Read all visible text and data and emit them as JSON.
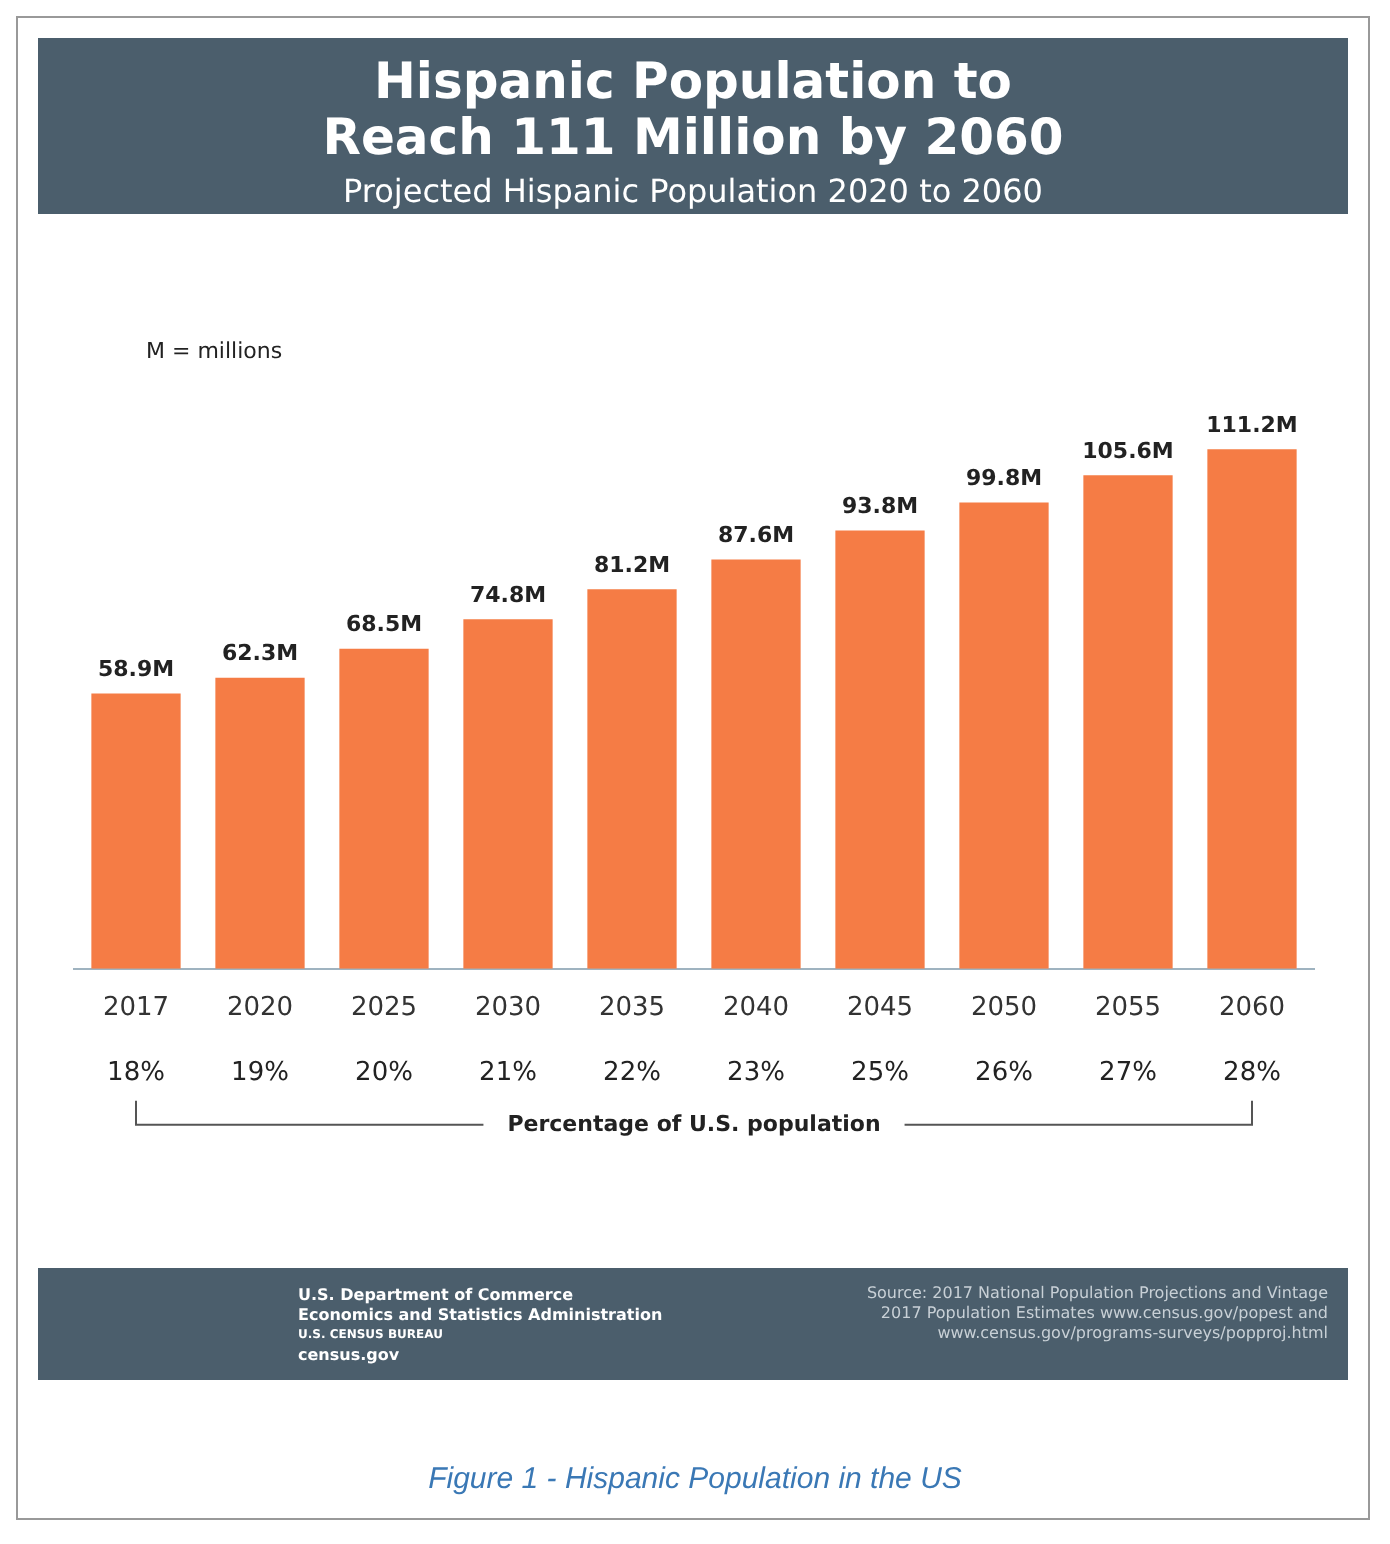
{
  "chart_data": {
    "type": "bar",
    "title": "Hispanic Population to Reach 111 Million by 2060",
    "subtitle": "Projected Hispanic Population 2020 to 2060",
    "categories": [
      "2017",
      "2020",
      "2025",
      "2030",
      "2035",
      "2040",
      "2045",
      "2050",
      "2055",
      "2060"
    ],
    "values": [
      58.9,
      62.3,
      68.5,
      74.8,
      81.2,
      87.6,
      93.8,
      99.8,
      105.6,
      111.2
    ],
    "value_labels": [
      "58.9M",
      "62.3M",
      "68.5M",
      "74.8M",
      "81.2M",
      "87.6M",
      "93.8M",
      "99.8M",
      "105.6M",
      "111.2M"
    ],
    "color": "#f57c45",
    "grid": false,
    "legend": false,
    "annotations": [
      "M = millions",
      "Percentage of U.S. population",
      "U.S. Department of Commerce",
      "Economics and Statistics Administration",
      "U.S. CENSUS BUREAU",
      "census.gov",
      "Source: 2017 National Population Projections and Vintage 2017 Population Estimates www.census.gov/popest and www.census.gov/programs-surveys/popproj.html",
      "Figure 1 - Hispanic Population in the US",
      "18%",
      "19%",
      "20%",
      "21%",
      "22%",
      "23%",
      "25%",
      "26%",
      "27%",
      "28%"
    ]
  }
}
